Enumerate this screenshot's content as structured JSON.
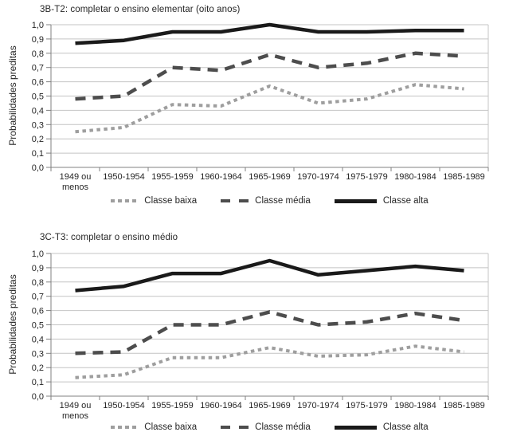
{
  "colors": {
    "background": "#ffffff",
    "gridline": "#c4c4c4",
    "axis": "#808080",
    "text": "#262626",
    "classe_baixa": "#9e9e9e",
    "classe_media": "#4d4d4d",
    "classe_alta": "#1a1a1a"
  },
  "y_axis_label": "Probabilidades preditas",
  "chart_data": [
    {
      "type": "line",
      "title": "3B-T2: completar o ensino elementar (oito anos)",
      "ylabel": "Probabilidades preditas",
      "xlabel": "",
      "ylim": [
        0.0,
        1.0
      ],
      "ytick_step": 0.1,
      "ytick_format": "comma-decimal",
      "grid": true,
      "legend_position": "bottom",
      "categories": [
        "1949 ou menos",
        "1950-1954",
        "1955-1959",
        "1960-1964",
        "1965-1969",
        "1970-1974",
        "1975-1979",
        "1980-1984",
        "1985-1989"
      ],
      "series": [
        {
          "name": "Classe baixa",
          "style": "dotted",
          "color": "#9e9e9e",
          "values": [
            0.25,
            0.28,
            0.44,
            0.43,
            0.57,
            0.45,
            0.48,
            0.58,
            0.55
          ]
        },
        {
          "name": "Classe média",
          "style": "dashed",
          "color": "#4d4d4d",
          "values": [
            0.48,
            0.5,
            0.7,
            0.68,
            0.79,
            0.7,
            0.73,
            0.8,
            0.78
          ]
        },
        {
          "name": "Classe alta",
          "style": "solid",
          "color": "#1a1a1a",
          "values": [
            0.87,
            0.89,
            0.95,
            0.95,
            1.0,
            0.95,
            0.95,
            0.96,
            0.96
          ]
        }
      ]
    },
    {
      "type": "line",
      "title": "3C-T3: completar o ensino médio",
      "ylabel": "Probabilidades preditas",
      "xlabel": "",
      "ylim": [
        0.0,
        1.0
      ],
      "ytick_step": 0.1,
      "ytick_format": "comma-decimal",
      "grid": true,
      "legend_position": "bottom",
      "categories": [
        "1949 ou menos",
        "1950-1954",
        "1955-1959",
        "1960-1964",
        "1965-1969",
        "1970-1974",
        "1975-1979",
        "1980-1984",
        "1985-1989"
      ],
      "series": [
        {
          "name": "Classe baixa",
          "style": "dotted",
          "color": "#9e9e9e",
          "values": [
            0.13,
            0.15,
            0.27,
            0.27,
            0.34,
            0.28,
            0.29,
            0.35,
            0.31
          ]
        },
        {
          "name": "Classe média",
          "style": "dashed",
          "color": "#4d4d4d",
          "values": [
            0.3,
            0.31,
            0.5,
            0.5,
            0.59,
            0.5,
            0.52,
            0.58,
            0.53
          ]
        },
        {
          "name": "Classe alta",
          "style": "solid",
          "color": "#1a1a1a",
          "values": [
            0.74,
            0.77,
            0.86,
            0.86,
            0.95,
            0.85,
            0.88,
            0.91,
            0.88
          ]
        }
      ]
    }
  ]
}
